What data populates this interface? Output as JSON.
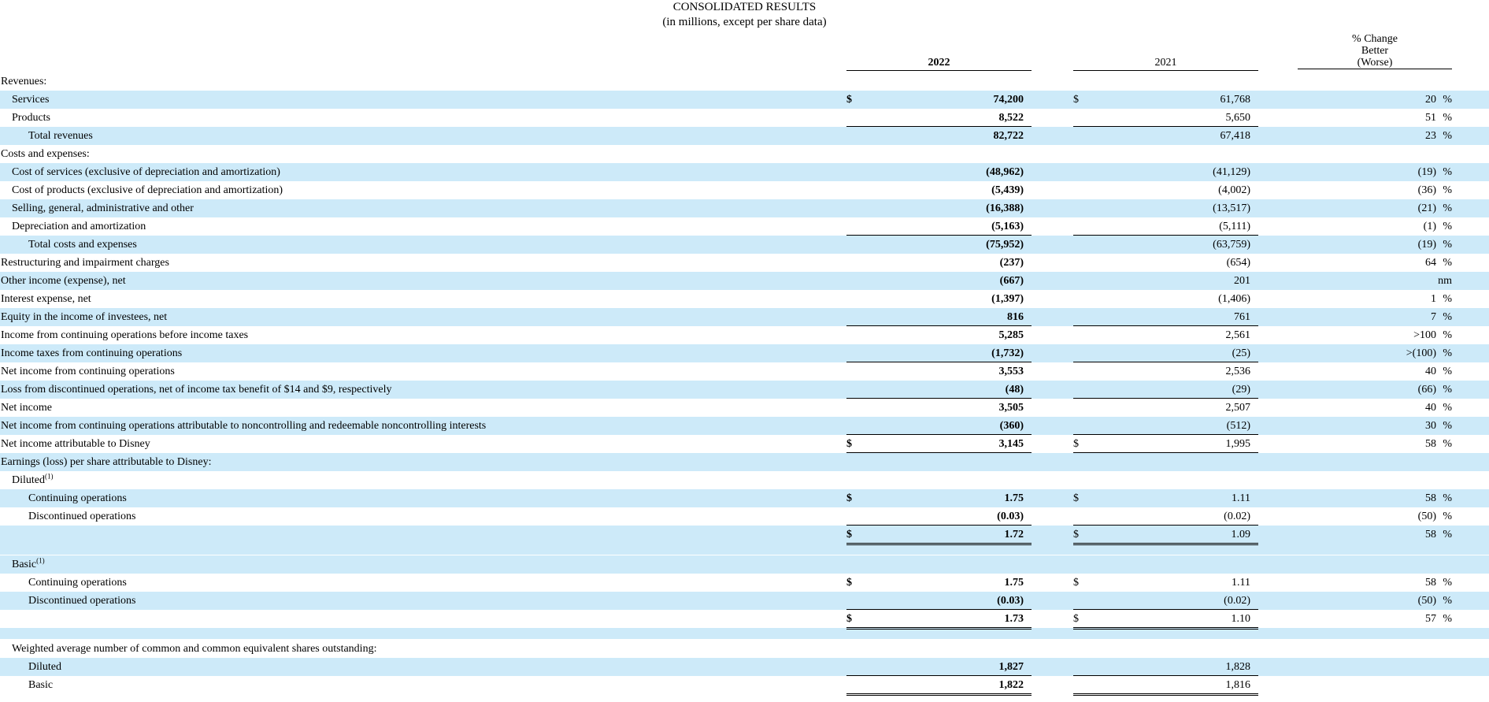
{
  "header": {
    "title": "CONSOLIDATED RESULTS",
    "subtitle": "(in millions, except per share data)",
    "col_2022": "2022",
    "col_2021": "2021",
    "col_change_1": "% Change",
    "col_change_2": "Better",
    "col_change_3": "(Worse)"
  },
  "rows": [
    {
      "label": "Revenues:",
      "v2022": "",
      "v2021": "",
      "chg": "",
      "pct": ""
    },
    {
      "label": "Services",
      "d": "$",
      "v2022": "74,200",
      "v2021": "61,768",
      "chg": "20",
      "pct": "%"
    },
    {
      "label": "Products",
      "v2022": "8,522",
      "v2021": "5,650",
      "chg": "51",
      "pct": "%"
    },
    {
      "label": "Total revenues",
      "v2022": "82,722",
      "v2021": "67,418",
      "chg": "23",
      "pct": "%"
    },
    {
      "label": "Costs and expenses:",
      "v2022": "",
      "v2021": "",
      "chg": "",
      "pct": ""
    },
    {
      "label": "Cost of services (exclusive of depreciation and amortization)",
      "v2022": "(48,962)",
      "v2021": "(41,129)",
      "chg": "(19)",
      "pct": "%"
    },
    {
      "label": "Cost of products (exclusive of depreciation and amortization)",
      "v2022": "(5,439)",
      "v2021": "(4,002)",
      "chg": "(36)",
      "pct": "%"
    },
    {
      "label": "Selling, general, administrative and other",
      "v2022": "(16,388)",
      "v2021": "(13,517)",
      "chg": "(21)",
      "pct": "%"
    },
    {
      "label": "Depreciation and amortization",
      "v2022": "(5,163)",
      "v2021": "(5,111)",
      "chg": "(1)",
      "pct": "%"
    },
    {
      "label": "Total costs and expenses",
      "v2022": "(75,952)",
      "v2021": "(63,759)",
      "chg": "(19)",
      "pct": "%"
    },
    {
      "label": "Restructuring and impairment charges",
      "v2022": "(237)",
      "v2021": "(654)",
      "chg": "64",
      "pct": "%"
    },
    {
      "label": "Other income (expense), net",
      "v2022": "(667)",
      "v2021": "201",
      "chg": "nm",
      "pct": ""
    },
    {
      "label": "Interest expense, net",
      "v2022": "(1,397)",
      "v2021": "(1,406)",
      "chg": "1",
      "pct": "%"
    },
    {
      "label": "Equity in the income of investees, net",
      "v2022": "816",
      "v2021": "761",
      "chg": "7",
      "pct": "%"
    },
    {
      "label": "Income from continuing operations before income taxes",
      "v2022": "5,285",
      "v2021": "2,561",
      "chg": ">100",
      "pct": "%"
    },
    {
      "label": "Income taxes from continuing operations",
      "v2022": "(1,732)",
      "v2021": "(25)",
      "chg": ">(100)",
      "pct": "%"
    },
    {
      "label": "Net income from continuing operations",
      "v2022": "3,553",
      "v2021": "2,536",
      "chg": "40",
      "pct": "%"
    },
    {
      "label": "Loss from discontinued operations, net of income tax benefit of $14 and $9, respectively",
      "v2022": "(48)",
      "v2021": "(29)",
      "chg": "(66)",
      "pct": "%"
    },
    {
      "label": "Net income",
      "v2022": "3,505",
      "v2021": "2,507",
      "chg": "40",
      "pct": "%"
    },
    {
      "label": "Net income from continuing operations attributable to noncontrolling and redeemable noncontrolling interests",
      "v2022": "(360)",
      "v2021": "(512)",
      "chg": "30",
      "pct": "%"
    },
    {
      "label": "Net income attributable to Disney",
      "d": "$",
      "v2022": "3,145",
      "v2021": "1,995",
      "chg": "58",
      "pct": "%"
    },
    {
      "label": "Earnings (loss) per share attributable to Disney:",
      "v2022": "",
      "v2021": "",
      "chg": "",
      "pct": ""
    },
    {
      "label": "Diluted",
      "sup": "(1)",
      "v2022": "",
      "v2021": "",
      "chg": "",
      "pct": ""
    },
    {
      "label": "Continuing operations",
      "d": "$",
      "v2022": "1.75",
      "v2021": "1.11",
      "chg": "58",
      "pct": "%"
    },
    {
      "label": "Discontinued operations",
      "v2022": "(0.03)",
      "v2021": "(0.02)",
      "chg": "(50)",
      "pct": "%"
    },
    {
      "label": "",
      "d": "$",
      "v2022": "1.72",
      "v2021": "1.09",
      "chg": "58",
      "pct": "%"
    },
    {
      "label": "Basic",
      "sup": "(1)",
      "v2022": "",
      "v2021": "",
      "chg": "",
      "pct": ""
    },
    {
      "label": "Continuing operations",
      "d": "$",
      "v2022": "1.75",
      "v2021": "1.11",
      "chg": "58",
      "pct": "%"
    },
    {
      "label": "Discontinued operations",
      "v2022": "(0.03)",
      "v2021": "(0.02)",
      "chg": "(50)",
      "pct": "%"
    },
    {
      "label": "",
      "d": "$",
      "v2022": "1.73",
      "v2021": "1.10",
      "chg": "57",
      "pct": "%"
    },
    {
      "label": "Weighted average number of common and common equivalent shares outstanding:",
      "v2022": "",
      "v2021": "",
      "chg": "",
      "pct": ""
    },
    {
      "label": "Diluted",
      "v2022": "1,827",
      "v2021": "1,828",
      "chg": "",
      "pct": ""
    },
    {
      "label": "Basic",
      "v2022": "1,822",
      "v2021": "1,816",
      "chg": "",
      "pct": ""
    }
  ]
}
